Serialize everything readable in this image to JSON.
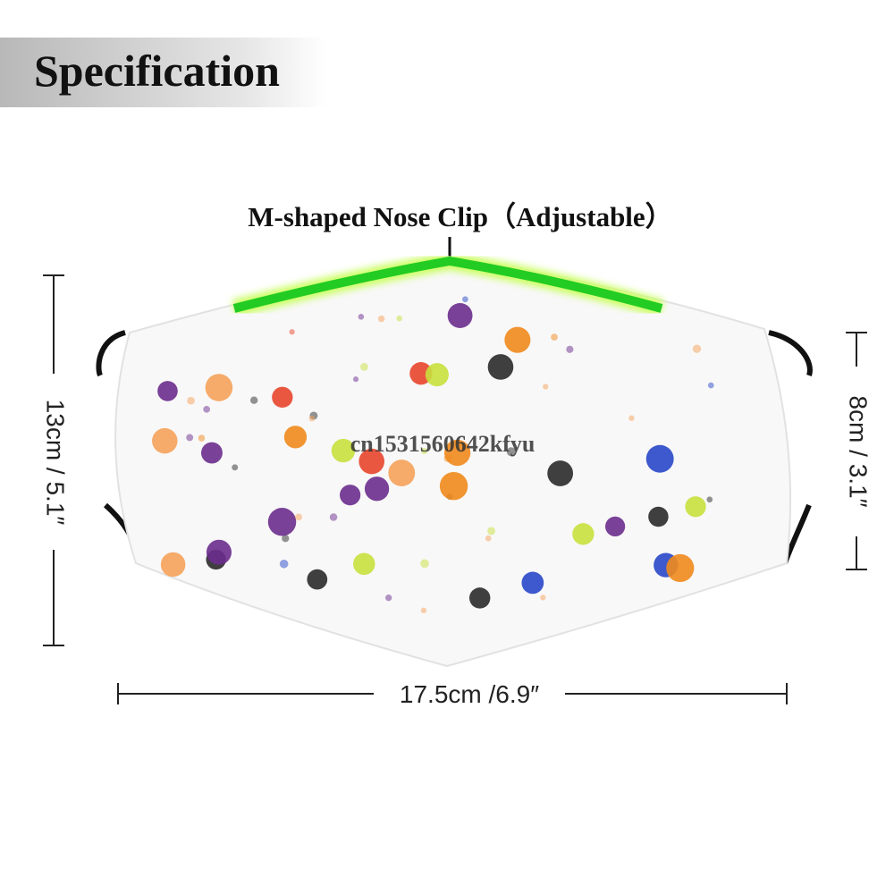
{
  "header": {
    "title": "Specification"
  },
  "labels": {
    "nose_clip": "M-shaped Nose Clip（Adjustable）",
    "height": "13cm / 5.1″",
    "side_height": "8cm / 3.1″",
    "width": "17.5cm /6.9″"
  },
  "watermark": "cn1531560642kfyu"
}
